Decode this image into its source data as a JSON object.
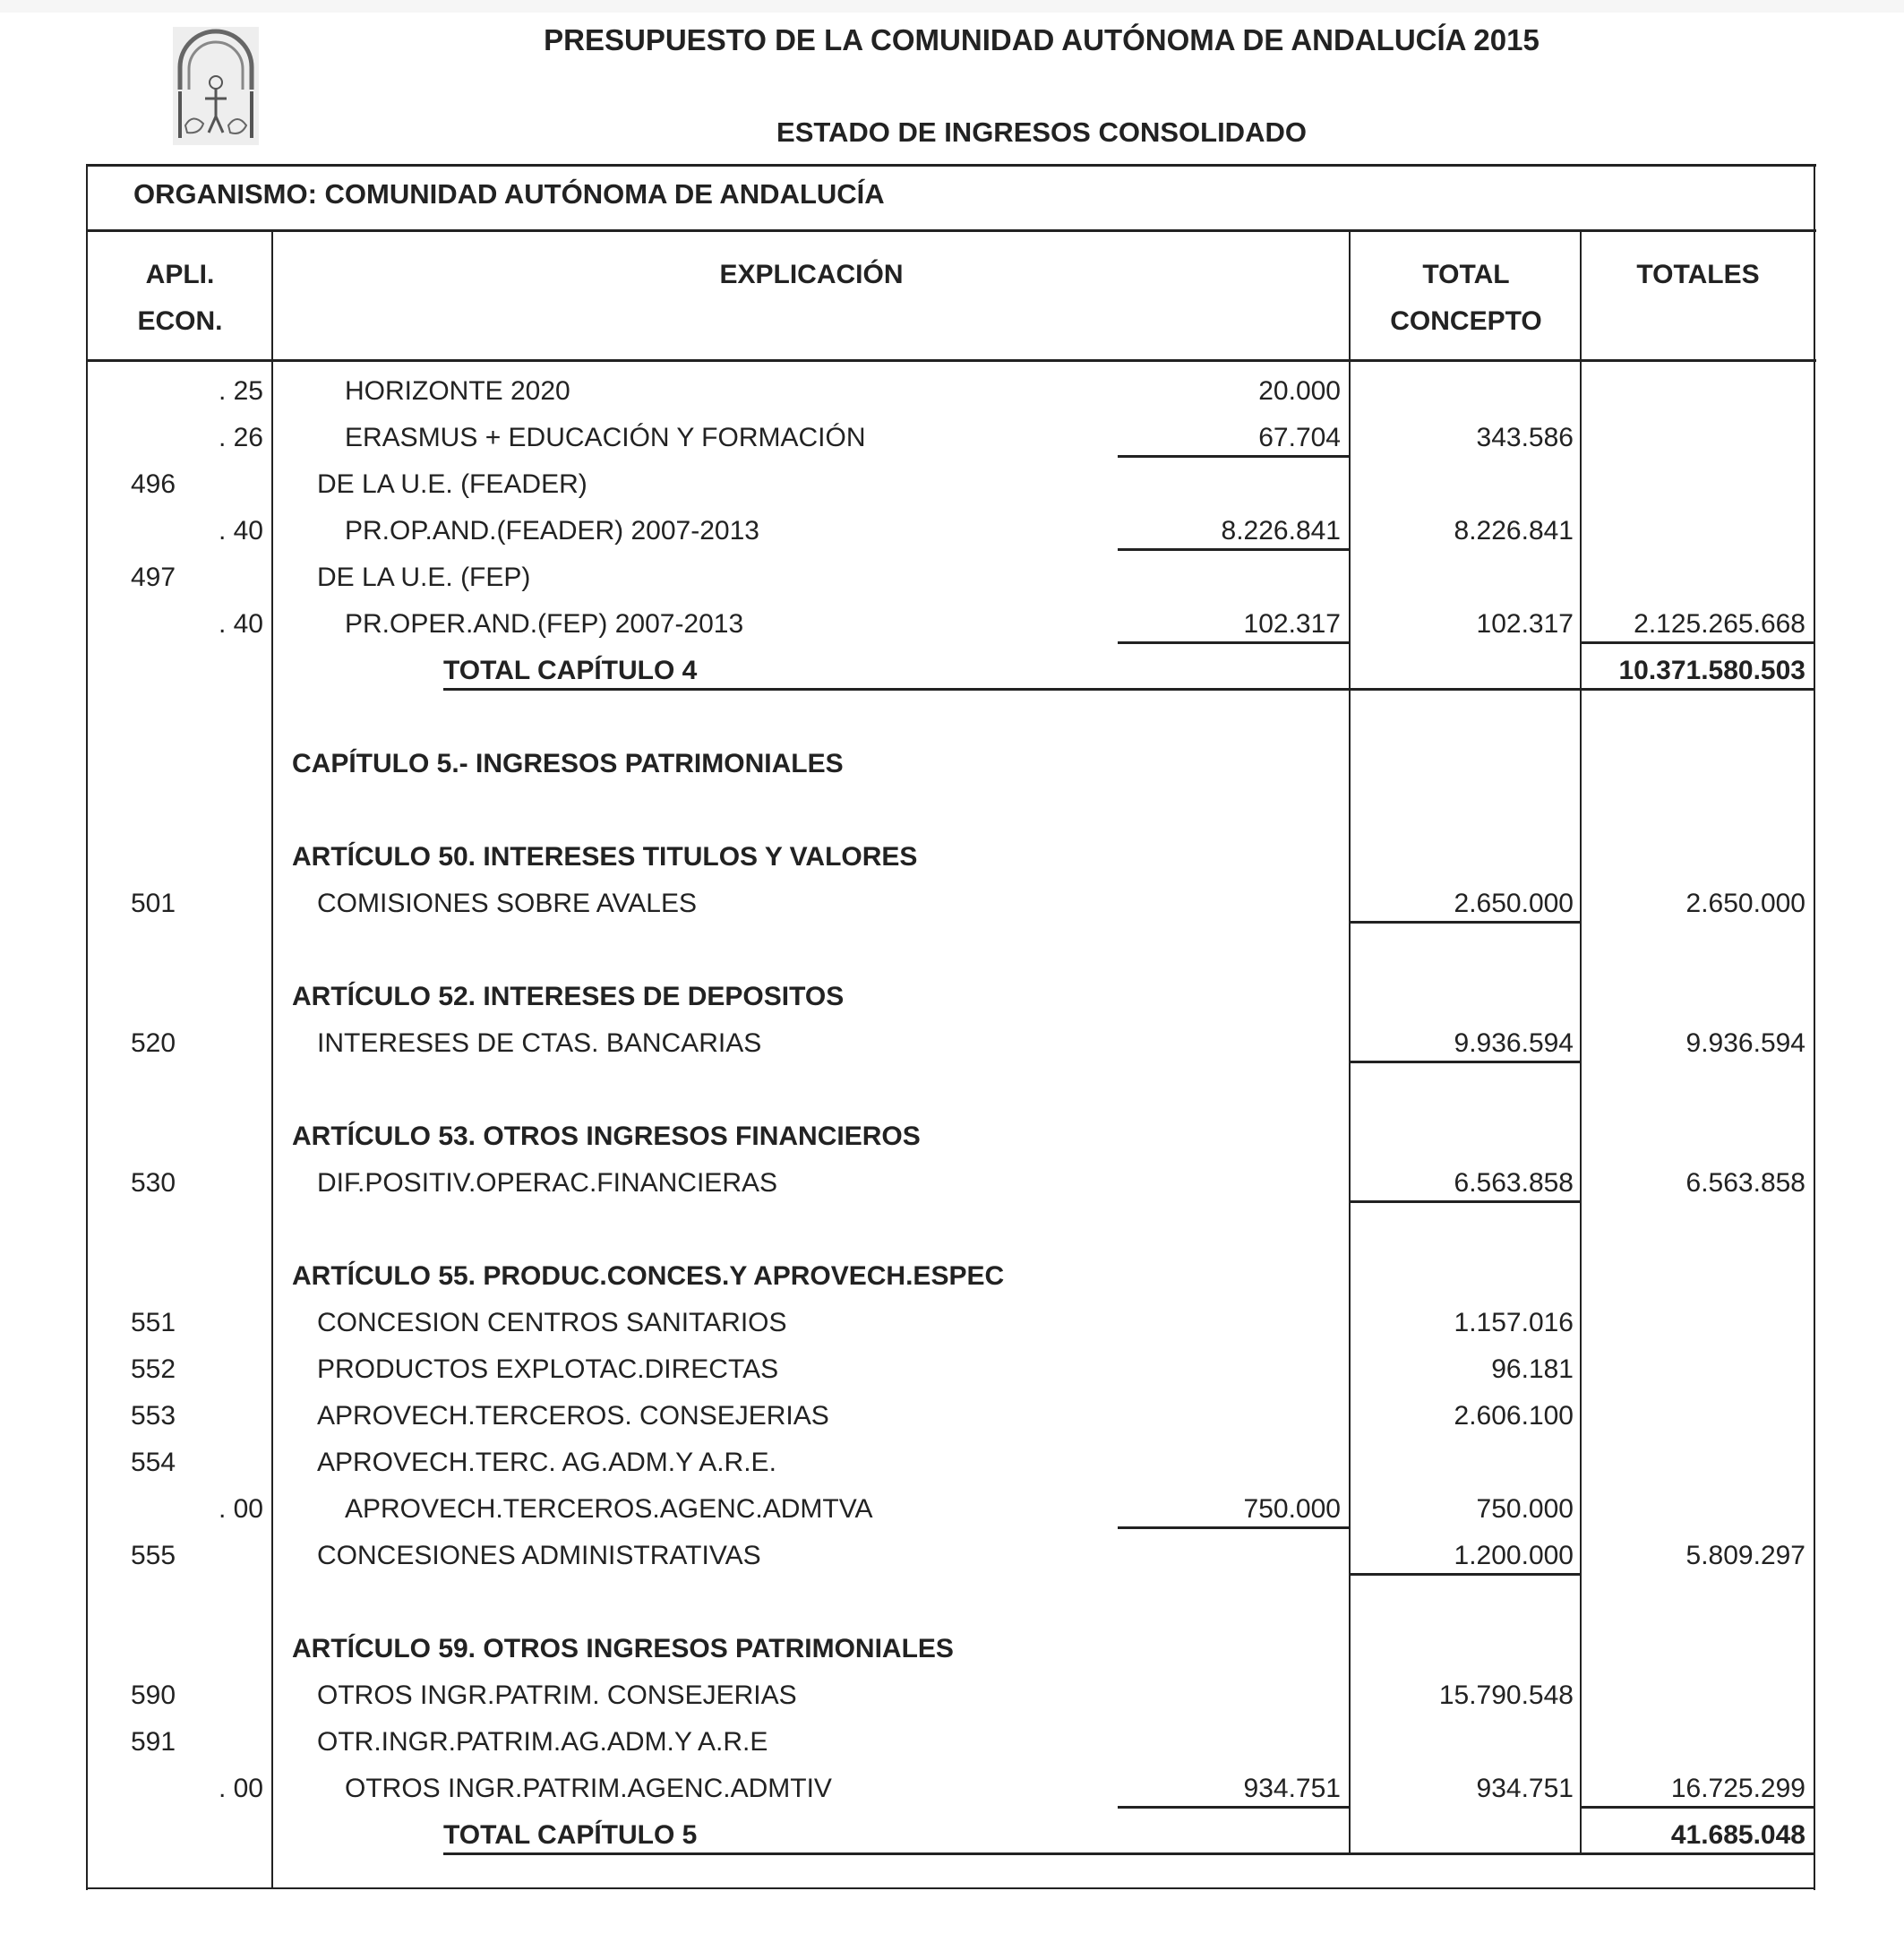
{
  "header": {
    "title": "PRESUPUESTO DE LA COMUNIDAD AUTÓNOMA DE ANDALUCÍA 2015",
    "subtitle": "ESTADO DE INGRESOS CONSOLIDADO",
    "organismo": "ORGANISMO: COMUNIDAD AUTÓNOMA DE ANDALUCÍA",
    "logo": "escudo-andalucia"
  },
  "columns": {
    "apli_1": "APLI.",
    "apli_2": "ECON.",
    "explicacion": "EXPLICACIÓN",
    "total_concepto_1": "TOTAL",
    "total_concepto_2": "CONCEPTO",
    "totales": "TOTALES"
  },
  "rows": [
    {
      "code": "",
      "sub": ". 25",
      "text": "HORIZONTE 2020",
      "type": "sub",
      "subamount": "20.000",
      "concepto": "",
      "total": ""
    },
    {
      "code": "",
      "sub": ". 26",
      "text": "ERASMUS + EDUCACIÓN Y FORMACIÓN",
      "type": "sub",
      "subamount": "67.704",
      "concepto": "343.586",
      "total": ""
    },
    {
      "code": "496",
      "sub": "",
      "text": "DE LA U.E. (FEADER)",
      "type": "concept",
      "subamount": "",
      "concepto": "",
      "total": ""
    },
    {
      "code": "",
      "sub": ". 40",
      "text": "PR.OP.AND.(FEADER) 2007-2013",
      "type": "sub",
      "subamount": "8.226.841",
      "concepto": "8.226.841",
      "total": ""
    },
    {
      "code": "497",
      "sub": "",
      "text": "DE LA U.E. (FEP)",
      "type": "concept",
      "subamount": "",
      "concepto": "",
      "total": ""
    },
    {
      "code": "",
      "sub": ". 40",
      "text": "PR.OPER.AND.(FEP) 2007-2013",
      "type": "sub",
      "subamount": "102.317",
      "concepto": "102.317",
      "total": "2.125.265.668"
    },
    {
      "code": "",
      "sub": "",
      "text": "TOTAL CAPÍTULO   4",
      "type": "chapter-total",
      "subamount": "",
      "concepto": "",
      "total": "10.371.580.503"
    },
    {
      "code": "",
      "sub": "",
      "text": "",
      "type": "blank",
      "subamount": "",
      "concepto": "",
      "total": ""
    },
    {
      "code": "",
      "sub": "",
      "text": "CAPÍTULO 5.- INGRESOS PATRIMONIALES",
      "type": "heading",
      "subamount": "",
      "concepto": "",
      "total": ""
    },
    {
      "code": "",
      "sub": "",
      "text": "",
      "type": "blank",
      "subamount": "",
      "concepto": "",
      "total": ""
    },
    {
      "code": "",
      "sub": "",
      "text": "ARTÍCULO 50.  INTERESES TITULOS Y VALORES",
      "type": "heading",
      "subamount": "",
      "concepto": "",
      "total": ""
    },
    {
      "code": "501",
      "sub": "",
      "text": "COMISIONES SOBRE AVALES",
      "type": "concept",
      "subamount": "",
      "concepto": "2.650.000",
      "total": "2.650.000"
    },
    {
      "code": "",
      "sub": "",
      "text": "",
      "type": "blank",
      "subamount": "",
      "concepto": "",
      "total": ""
    },
    {
      "code": "",
      "sub": "",
      "text": "ARTÍCULO 52.  INTERESES DE DEPOSITOS",
      "type": "heading",
      "subamount": "",
      "concepto": "",
      "total": ""
    },
    {
      "code": "520",
      "sub": "",
      "text": "INTERESES DE CTAS. BANCARIAS",
      "type": "concept",
      "subamount": "",
      "concepto": "9.936.594",
      "total": "9.936.594"
    },
    {
      "code": "",
      "sub": "",
      "text": "",
      "type": "blank",
      "subamount": "",
      "concepto": "",
      "total": ""
    },
    {
      "code": "",
      "sub": "",
      "text": "ARTÍCULO 53.  OTROS INGRESOS FINANCIEROS",
      "type": "heading",
      "subamount": "",
      "concepto": "",
      "total": ""
    },
    {
      "code": "530",
      "sub": "",
      "text": "DIF.POSITIV.OPERAC.FINANCIERAS",
      "type": "concept",
      "subamount": "",
      "concepto": "6.563.858",
      "total": "6.563.858"
    },
    {
      "code": "",
      "sub": "",
      "text": "",
      "type": "blank",
      "subamount": "",
      "concepto": "",
      "total": ""
    },
    {
      "code": "",
      "sub": "",
      "text": "ARTÍCULO 55.  PRODUC.CONCES.Y APROVECH.ESPEC",
      "type": "heading",
      "subamount": "",
      "concepto": "",
      "total": ""
    },
    {
      "code": "551",
      "sub": "",
      "text": "CONCESION CENTROS SANITARIOS",
      "type": "concept",
      "subamount": "",
      "concepto": "1.157.016",
      "total": ""
    },
    {
      "code": "552",
      "sub": "",
      "text": "PRODUCTOS EXPLOTAC.DIRECTAS",
      "type": "concept",
      "subamount": "",
      "concepto": "96.181",
      "total": ""
    },
    {
      "code": "553",
      "sub": "",
      "text": "APROVECH.TERCEROS. CONSEJERIAS",
      "type": "concept",
      "subamount": "",
      "concepto": "2.606.100",
      "total": ""
    },
    {
      "code": "554",
      "sub": "",
      "text": "APROVECH.TERC. AG.ADM.Y A.R.E.",
      "type": "concept",
      "subamount": "",
      "concepto": "",
      "total": ""
    },
    {
      "code": "",
      "sub": ". 00",
      "text": "APROVECH.TERCEROS.AGENC.ADMTVA",
      "type": "sub",
      "subamount": "750.000",
      "concepto": "750.000",
      "total": ""
    },
    {
      "code": "555",
      "sub": "",
      "text": "CONCESIONES ADMINISTRATIVAS",
      "type": "concept",
      "subamount": "",
      "concepto": "1.200.000",
      "total": "5.809.297"
    },
    {
      "code": "",
      "sub": "",
      "text": "",
      "type": "blank",
      "subamount": "",
      "concepto": "",
      "total": ""
    },
    {
      "code": "",
      "sub": "",
      "text": "ARTÍCULO 59.  OTROS INGRESOS PATRIMONIALES",
      "type": "heading",
      "subamount": "",
      "concepto": "",
      "total": ""
    },
    {
      "code": "590",
      "sub": "",
      "text": "OTROS INGR.PATRIM. CONSEJERIAS",
      "type": "concept",
      "subamount": "",
      "concepto": "15.790.548",
      "total": ""
    },
    {
      "code": "591",
      "sub": "",
      "text": "OTR.INGR.PATRIM.AG.ADM.Y A.R.E",
      "type": "concept",
      "subamount": "",
      "concepto": "",
      "total": ""
    },
    {
      "code": "",
      "sub": ". 00",
      "text": "OTROS INGR.PATRIM.AGENC.ADMTIV",
      "type": "sub",
      "subamount": "934.751",
      "concepto": "934.751",
      "total": "16.725.299"
    },
    {
      "code": "",
      "sub": "",
      "text": "TOTAL CAPÍTULO   5",
      "type": "chapter-total",
      "subamount": "",
      "concepto": "",
      "total": "41.685.048"
    }
  ]
}
